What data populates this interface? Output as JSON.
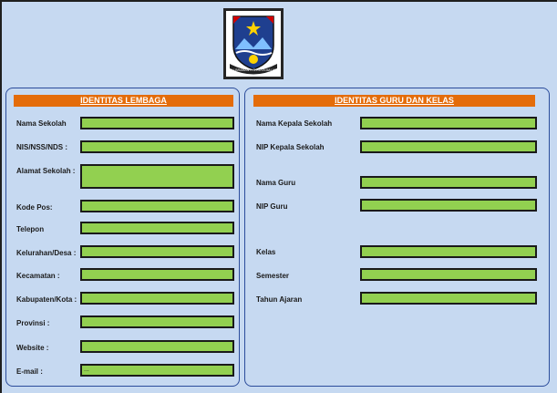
{
  "logo": {
    "name": "regional-emblem",
    "motto": "BALI BRAMANTYO KOTA MALANG"
  },
  "left_panel": {
    "title": "IDENTITAS LEMBAGA",
    "fields": [
      {
        "label": "Nama Sekolah",
        "value": ""
      },
      {
        "label": "NIS/NSS/NDS :",
        "value": ""
      },
      {
        "label": "Alamat Sekolah :",
        "value": ""
      },
      {
        "label": "Kode Pos:",
        "value": ""
      },
      {
        "label": "Telepon",
        "value": ""
      },
      {
        "label": "Kelurahan/Desa :",
        "value": ""
      },
      {
        "label": "Kecamatan :",
        "value": ""
      },
      {
        "label": "Kabupaten/Kota :",
        "value": ""
      },
      {
        "label": "Provinsi :",
        "value": ""
      },
      {
        "label": "Website :",
        "value": ""
      },
      {
        "label": "E-mail :",
        "value": "..."
      }
    ]
  },
  "right_panel": {
    "title": "IDENTITAS GURU DAN KELAS",
    "fields": [
      {
        "label": "Nama Kepala Sekolah",
        "value": ""
      },
      {
        "label": "NIP Kepala Sekolah",
        "value": ""
      },
      {
        "label": "Nama Guru",
        "value": ""
      },
      {
        "label": "NIP Guru",
        "value": ""
      },
      {
        "label": "Kelas",
        "value": ""
      },
      {
        "label": "Semester",
        "value": ""
      },
      {
        "label": "Tahun Ajaran",
        "value": ""
      }
    ]
  },
  "colors": {
    "background": "#c6d9f1",
    "header": "#e46c0a",
    "field": "#92d050",
    "panel_border": "#2b4c9b"
  }
}
